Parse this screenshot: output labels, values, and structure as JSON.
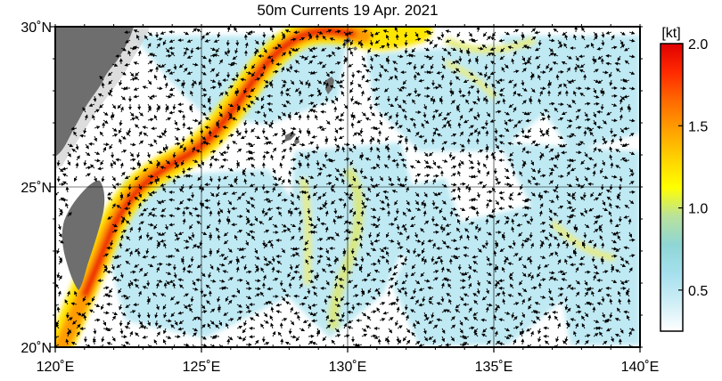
{
  "title": "50m Currents  19 Apr. 2021",
  "map": {
    "lon_range": [
      120,
      140
    ],
    "lat_range": [
      20,
      30
    ],
    "lon_ticks": [
      {
        "value": 120,
        "label": "120˚E"
      },
      {
        "value": 125,
        "label": "125˚E"
      },
      {
        "value": 130,
        "label": "130˚E"
      },
      {
        "value": 135,
        "label": "135˚E"
      },
      {
        "value": 140,
        "label": "140˚E"
      }
    ],
    "lat_ticks": [
      {
        "value": 20,
        "label": "20˚N"
      },
      {
        "value": 25,
        "label": "25˚N"
      },
      {
        "value": 30,
        "label": "30˚N"
      }
    ],
    "land_color": "#6e6e6e",
    "ocean_color": "#ffffff",
    "grid": true,
    "arrows": true
  },
  "colorbar": {
    "unit": "[kt]",
    "range": [
      0.25,
      2.0
    ],
    "ticks": [
      {
        "value": 0.5,
        "label": "0.5"
      },
      {
        "value": 1.0,
        "label": "1.0"
      },
      {
        "value": 1.5,
        "label": "1.5"
      },
      {
        "value": 2.0,
        "label": "2.0"
      }
    ],
    "colors": [
      "#ffffff",
      "#cfeef6",
      "#a6e0ee",
      "#8fd6d6",
      "#b9e29b",
      "#ffff00",
      "#ffd200",
      "#ffa000",
      "#ff6a00",
      "#ff2a00",
      "#e00000"
    ]
  }
}
